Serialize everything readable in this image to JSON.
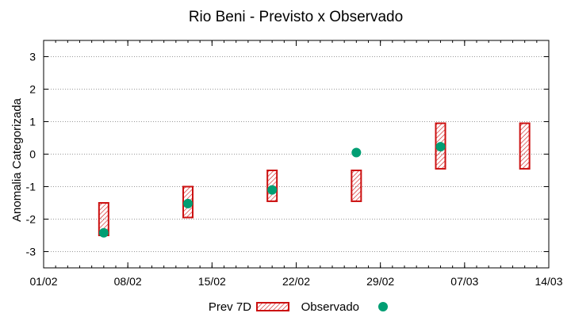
{
  "chart_data": {
    "type": "scatter",
    "title": "Rio Beni - Previsto x Observado",
    "xlabel": "",
    "ylabel": "Anomalia Categorizada",
    "x_axis": {
      "type": "date",
      "min": "2024-02-01",
      "max": "2024-03-14",
      "tick_values": [
        "2024-02-01",
        "2024-02-08",
        "2024-02-15",
        "2024-02-22",
        "2024-02-29",
        "2024-03-07",
        "2024-03-14"
      ],
      "tick_labels": [
        "01/02",
        "08/02",
        "15/02",
        "22/02",
        "29/02",
        "07/03",
        "14/03"
      ]
    },
    "y_axis": {
      "min": -3.5,
      "max": 3.5,
      "ticks": [
        -3,
        -2,
        -1,
        0,
        1,
        2,
        3
      ]
    },
    "grid": true,
    "legend_position": "bottom",
    "series": [
      {
        "name": "Prev 7D",
        "kind": "range",
        "color": "#cc1111",
        "points": [
          {
            "x": "2024-02-06",
            "low": -2.5,
            "high": -1.5
          },
          {
            "x": "2024-02-13",
            "low": -1.95,
            "high": -1.0
          },
          {
            "x": "2024-02-20",
            "low": -1.45,
            "high": -0.5
          },
          {
            "x": "2024-02-27",
            "low": -1.45,
            "high": -0.5
          },
          {
            "x": "2024-03-05",
            "low": -0.45,
            "high": 0.95
          },
          {
            "x": "2024-03-12",
            "low": -0.45,
            "high": 0.95
          }
        ]
      },
      {
        "name": "Observado",
        "kind": "point",
        "color": "#009e73",
        "points": [
          {
            "x": "2024-02-06",
            "y": -2.42
          },
          {
            "x": "2024-02-13",
            "y": -1.52
          },
          {
            "x": "2024-02-20",
            "y": -1.1
          },
          {
            "x": "2024-02-27",
            "y": 0.05
          },
          {
            "x": "2024-03-05",
            "y": 0.23
          }
        ]
      }
    ]
  }
}
